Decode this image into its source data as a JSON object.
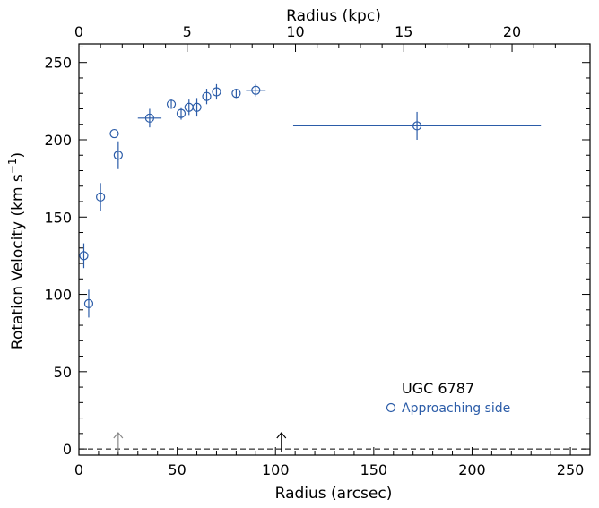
{
  "chart_data": {
    "type": "scatter",
    "xlabel": "Radius (arcsec)",
    "x2label": "Radius (kpc)",
    "ylabel": "Rotation Velocity (km s",
    "ylabel_sup": "−1",
    "ylabel_end": ")",
    "xlim": [
      0,
      260
    ],
    "ylim": [
      -4,
      262
    ],
    "x2lim": [
      0,
      23.6
    ],
    "xticks": [
      0,
      50,
      100,
      150,
      200,
      250
    ],
    "xtick_labels": [
      "0",
      "50",
      "100",
      "150",
      "200",
      "250"
    ],
    "yticks": [
      0,
      50,
      100,
      150,
      200,
      250
    ],
    "ytick_labels": [
      "0",
      "50",
      "100",
      "150",
      "200",
      "250"
    ],
    "x2ticks": [
      0,
      5,
      10,
      15,
      20
    ],
    "x2tick_labels": [
      "0",
      "5",
      "10",
      "15",
      "20"
    ],
    "annotation": "UGC 6787",
    "zero_line": true,
    "grid": false,
    "legend_position": "lower-right",
    "series": [
      {
        "name": "Approaching side",
        "color": "#2b5ca8",
        "marker": "open-circle",
        "points": [
          {
            "x": 2.5,
            "y": 125,
            "xerr": 0,
            "yerr": 8
          },
          {
            "x": 5,
            "y": 94,
            "xerr": 0,
            "yerr": 9
          },
          {
            "x": 11,
            "y": 163,
            "xerr": 0,
            "yerr": 9
          },
          {
            "x": 18,
            "y": 204,
            "xerr": 0,
            "yerr": 0
          },
          {
            "x": 20,
            "y": 190,
            "xerr": 0,
            "yerr": 9
          },
          {
            "x": 36,
            "y": 214,
            "xerr": 6,
            "yerr": 6
          },
          {
            "x": 47,
            "y": 223,
            "xerr": 0,
            "yerr": 3
          },
          {
            "x": 52,
            "y": 217,
            "xerr": 0,
            "yerr": 4
          },
          {
            "x": 56,
            "y": 221,
            "xerr": 0,
            "yerr": 5
          },
          {
            "x": 60,
            "y": 221,
            "xerr": 0,
            "yerr": 6
          },
          {
            "x": 65,
            "y": 228,
            "xerr": 0,
            "yerr": 5
          },
          {
            "x": 70,
            "y": 231,
            "xerr": 0,
            "yerr": 5
          },
          {
            "x": 80,
            "y": 230,
            "xerr": 0,
            "yerr": 3
          },
          {
            "x": 90,
            "y": 232,
            "xerr": 5,
            "yerr": 4
          },
          {
            "x": 172,
            "y": 209,
            "xerr": 63,
            "yerr": 9
          }
        ]
      }
    ],
    "markers": [
      {
        "x": 20,
        "color": "#888888"
      },
      {
        "x": 103,
        "color": "#000000"
      }
    ]
  }
}
